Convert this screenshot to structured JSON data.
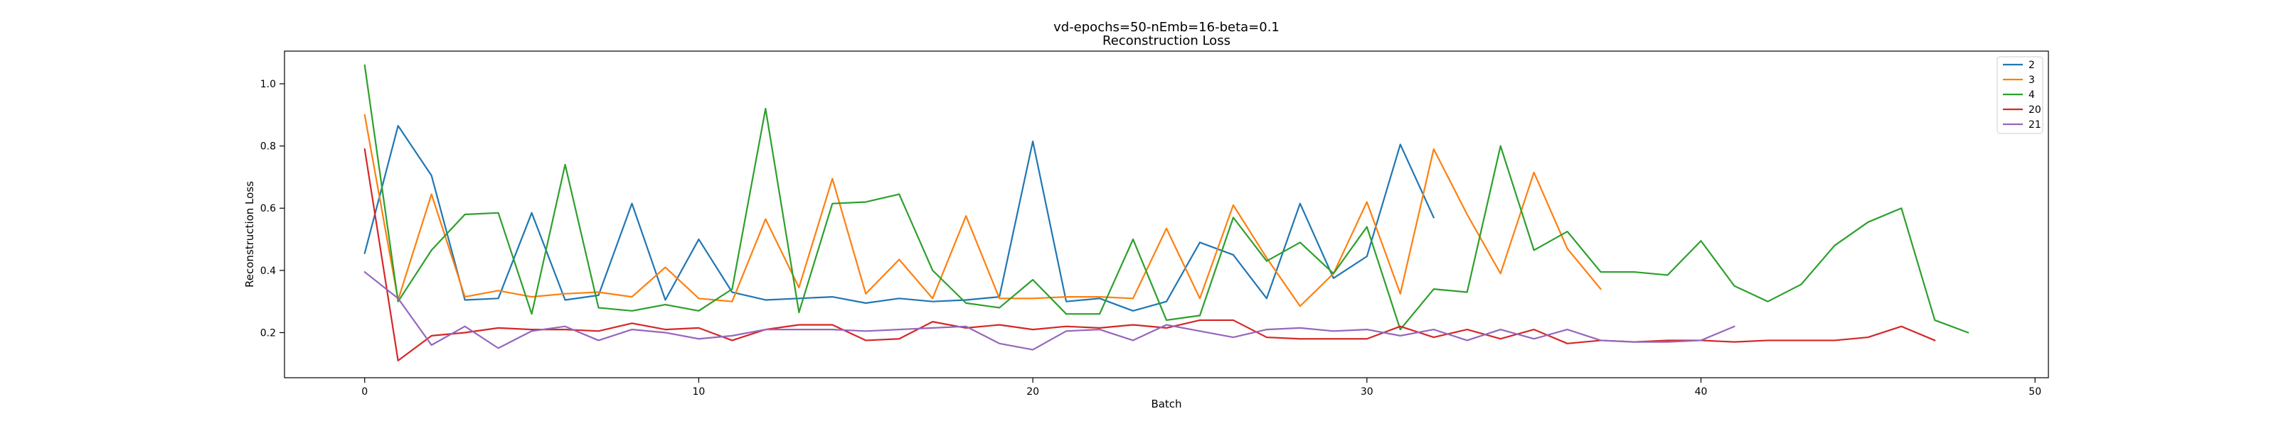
{
  "chart_data": {
    "type": "line",
    "title": "vd-epochs=50-nEmb=16-beta=0.1",
    "subtitle": "Reconstruction Loss",
    "xlabel": "Batch",
    "ylabel": "Reconstruction Loss",
    "xlim": [
      -2.4,
      50.4
    ],
    "ylim": [
      0.055,
      1.105
    ],
    "xticks": [
      0,
      10,
      20,
      30,
      40,
      50
    ],
    "yticks": [
      0.2,
      0.4,
      0.6,
      0.8,
      1.0
    ],
    "xtick_labels": [
      "0",
      "10",
      "20",
      "30",
      "40",
      "50"
    ],
    "ytick_labels": [
      "0.2",
      "0.4",
      "0.6",
      "0.8",
      "1.0"
    ],
    "grid": false,
    "legend_position": "top-right",
    "series": [
      {
        "name": "2",
        "color": "#1f77b4",
        "values": [
          0.455,
          0.865,
          0.705,
          0.305,
          0.31,
          0.585,
          0.305,
          0.32,
          0.615,
          0.305,
          0.5,
          0.33,
          0.305,
          0.31,
          0.315,
          0.295,
          0.31,
          0.3,
          0.305,
          0.315,
          0.815,
          0.3,
          0.31,
          0.27,
          0.3,
          0.49,
          0.45,
          0.31,
          0.615,
          0.375,
          0.445,
          0.805,
          0.57
        ]
      },
      {
        "name": "3",
        "color": "#ff7f0e",
        "values": [
          0.9,
          0.305,
          0.645,
          0.315,
          0.335,
          0.315,
          0.325,
          0.33,
          0.315,
          0.41,
          0.31,
          0.3,
          0.565,
          0.345,
          0.695,
          0.325,
          0.435,
          0.31,
          0.575,
          0.31,
          0.31,
          0.315,
          0.315,
          0.31,
          0.535,
          0.31,
          0.61,
          0.44,
          0.285,
          0.39,
          0.62,
          0.325,
          0.79,
          0.58,
          0.39,
          0.715,
          0.47,
          0.34
        ]
      },
      {
        "name": "4",
        "color": "#2ca02c",
        "values": [
          1.06,
          0.3,
          0.465,
          0.58,
          0.585,
          0.26,
          0.74,
          0.28,
          0.27,
          0.29,
          0.27,
          0.34,
          0.92,
          0.265,
          0.615,
          0.62,
          0.645,
          0.4,
          0.295,
          0.28,
          0.37,
          0.26,
          0.26,
          0.5,
          0.24,
          0.255,
          0.57,
          0.43,
          0.49,
          0.39,
          0.54,
          0.21,
          0.34,
          0.33,
          0.8,
          0.465,
          0.525,
          0.395,
          0.395,
          0.385,
          0.495,
          0.35,
          0.3,
          0.355,
          0.48,
          0.555,
          0.6,
          0.24,
          0.2
        ]
      },
      {
        "name": "20",
        "color": "#d62728",
        "values": [
          0.79,
          0.11,
          0.19,
          0.2,
          0.215,
          0.21,
          0.21,
          0.205,
          0.23,
          0.21,
          0.215,
          0.175,
          0.21,
          0.225,
          0.225,
          0.175,
          0.18,
          0.235,
          0.215,
          0.225,
          0.21,
          0.22,
          0.215,
          0.225,
          0.215,
          0.24,
          0.24,
          0.185,
          0.18,
          0.18,
          0.18,
          0.22,
          0.185,
          0.21,
          0.18,
          0.21,
          0.165,
          0.175,
          0.17,
          0.175,
          0.175,
          0.17,
          0.175,
          0.175,
          0.175,
          0.185,
          0.22,
          0.175
        ]
      },
      {
        "name": "21",
        "color": "#9467bd",
        "values": [
          0.395,
          0.31,
          0.16,
          0.22,
          0.15,
          0.205,
          0.22,
          0.175,
          0.21,
          0.2,
          0.18,
          0.19,
          0.21,
          0.21,
          0.21,
          0.205,
          0.21,
          0.215,
          0.22,
          0.165,
          0.145,
          0.205,
          0.21,
          0.175,
          0.225,
          0.205,
          0.185,
          0.21,
          0.215,
          0.205,
          0.21,
          0.19,
          0.21,
          0.175,
          0.21,
          0.18,
          0.21,
          0.175,
          0.17,
          0.17,
          0.175,
          0.22
        ]
      }
    ]
  }
}
